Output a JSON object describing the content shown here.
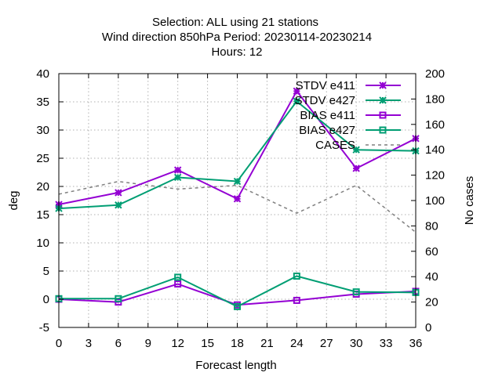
{
  "chart_data": {
    "type": "line",
    "title_lines": [
      "Selection: ALL using    21 stations",
      "Wind direction 850hPa   Period: 20230114-20230214",
      "Hours:  12"
    ],
    "xlabel": "Forecast length",
    "ylabel": "deg",
    "y2label": "No cases",
    "xlim": [
      0,
      36
    ],
    "ylim": [
      -5,
      40
    ],
    "y2lim": [
      0,
      200
    ],
    "xticks": [
      0,
      3,
      6,
      9,
      12,
      15,
      18,
      21,
      24,
      27,
      30,
      33,
      36
    ],
    "yticks": [
      -5,
      0,
      5,
      10,
      15,
      20,
      25,
      30,
      35,
      40
    ],
    "y2ticks": [
      0,
      20,
      40,
      60,
      80,
      100,
      120,
      140,
      160,
      180,
      200
    ],
    "grid": true,
    "legend_position": "top-right",
    "x": [
      0,
      6,
      12,
      18,
      24,
      30,
      36
    ],
    "series": [
      {
        "name": "STDV e411",
        "color": "#9400d3",
        "marker": "x-star",
        "axis": "left",
        "values": [
          16.8,
          18.9,
          22.9,
          17.8,
          36.9,
          23.2,
          28.5
        ]
      },
      {
        "name": "STDV e427",
        "color": "#009e73",
        "marker": "x-star",
        "axis": "left",
        "values": [
          16.1,
          16.7,
          21.6,
          20.9,
          35.1,
          26.5,
          26.3
        ]
      },
      {
        "name": "BIAS e411",
        "color": "#9400d3",
        "marker": "square",
        "axis": "left",
        "values": [
          0.0,
          -0.5,
          2.7,
          -1.0,
          -0.2,
          0.9,
          1.4
        ]
      },
      {
        "name": "BIAS e427",
        "color": "#009e73",
        "marker": "square",
        "axis": "left",
        "values": [
          0.1,
          0.1,
          3.9,
          -1.3,
          4.1,
          1.3,
          1.2
        ]
      },
      {
        "name": "CASES",
        "color": "#808080",
        "marker": "none",
        "dashed": true,
        "axis": "right",
        "values": [
          105,
          115,
          109,
          112,
          90,
          112,
          75
        ]
      }
    ]
  }
}
